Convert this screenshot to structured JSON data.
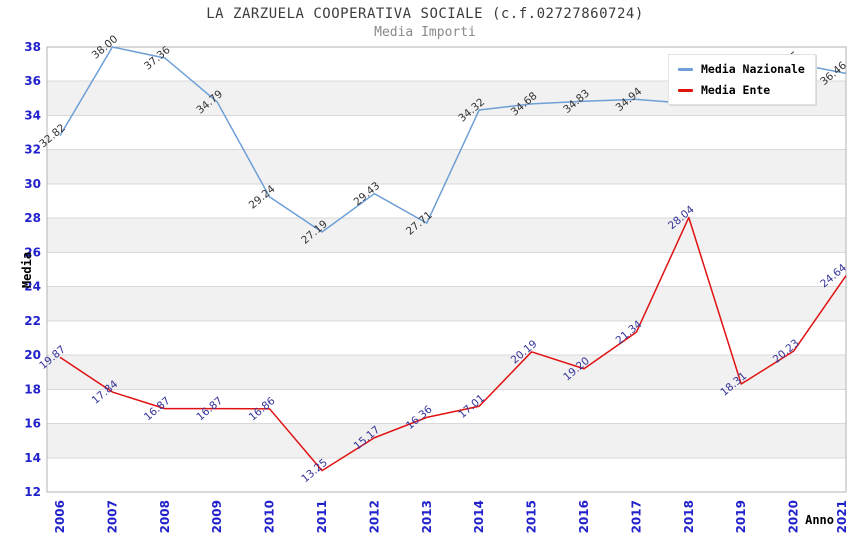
{
  "header": {
    "title": "LA ZARZUELA COOPERATIVA SOCIALE (c.f.02727860724)",
    "subtitle": "Media Importi"
  },
  "axis": {
    "y_label": "Media",
    "x_label": "Anno"
  },
  "legend": {
    "position": "top-right",
    "items": [
      {
        "label": "Media Nazionale",
        "color": "#6e9fd6"
      },
      {
        "label": "Media Ente",
        "color": "#e01212"
      }
    ]
  },
  "colors": {
    "tick_label": "#2222cc",
    "grid_line": "#d9d9d9",
    "band_fill": "#f1f1f1",
    "frame": "#b3b3b3",
    "title_text": "#3c3c3c",
    "subtitle_text": "#8a8a8a"
  },
  "chart_data": {
    "type": "line",
    "title": "LA ZARZUELA COOPERATIVA SOCIALE (c.f.02727860724)",
    "subtitle": "Media Importi",
    "xlabel": "Anno",
    "ylabel": "Media",
    "x": [
      2006,
      2007,
      2008,
      2009,
      2010,
      2011,
      2012,
      2013,
      2014,
      2015,
      2016,
      2017,
      2018,
      2019,
      2020,
      2021
    ],
    "ylim": [
      12,
      38
    ],
    "ytick_step": 2,
    "grid": true,
    "legend_position": "top-right",
    "series": [
      {
        "name": "Media Nazionale",
        "color": "#6e9fd6",
        "label_color": "#333333",
        "values": [
          32.82,
          38.0,
          37.36,
          34.79,
          29.24,
          27.19,
          29.43,
          27.71,
          34.32,
          34.68,
          34.83,
          34.94,
          34.7,
          34.6,
          37.05,
          36.46
        ],
        "labels": [
          "32.82",
          "38.00",
          "37.36",
          "34.79",
          "29.24",
          "27.19",
          "29.43",
          "27.71",
          "34.32",
          "34.68",
          "34.83",
          "34.94",
          "",
          "",
          "37.05",
          "36.46"
        ]
      },
      {
        "name": "Media Ente",
        "color": "#e01212",
        "label_color": "#333399",
        "values": [
          19.87,
          17.84,
          16.87,
          16.87,
          16.86,
          13.25,
          15.17,
          16.36,
          17.01,
          20.19,
          19.2,
          21.34,
          28.04,
          18.31,
          20.23,
          24.64
        ],
        "labels": [
          "19.87",
          "17.84",
          "16.87",
          "16.87",
          "16.86",
          "13.25",
          "15.17",
          "16.36",
          "17.01",
          "20.19",
          "19.20",
          "21.34",
          "28.04",
          "18.31",
          "20.23",
          "24.64"
        ]
      }
    ]
  }
}
